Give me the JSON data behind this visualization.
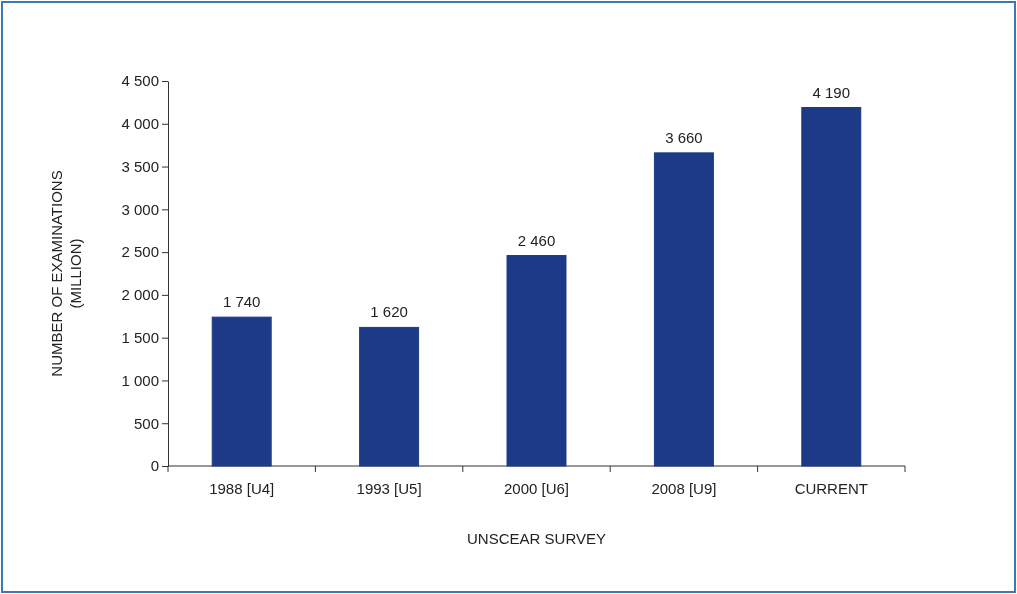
{
  "chart_data": {
    "type": "bar",
    "xlabel": "UNSCEAR SURVEY",
    "ylabel": "NUMBER OF EXAMINATIONS\n(MILLION)",
    "categories": [
      "1988 [U4]",
      "1993 [U5]",
      "2000 [U6]",
      "2008 [U9]",
      "CURRENT"
    ],
    "values": [
      1740,
      1620,
      2460,
      3660,
      4190
    ],
    "value_labels": [
      "1 740",
      "1 620",
      "2 460",
      "3 660",
      "4 190"
    ],
    "color": "#1c3a86",
    "ylim": [
      0,
      4500
    ],
    "yticks": [
      0,
      500,
      {
        "value": 1000,
        "label": "1 000"
      },
      {
        "value": 1500,
        "label": "1 500"
      },
      {
        "value": 2000,
        "label": "2 000"
      },
      {
        "value": 2500,
        "label": "2 500"
      },
      {
        "value": 3000,
        "label": "3 000"
      },
      {
        "value": 3500,
        "label": "3 500"
      },
      {
        "value": 4000,
        "label": "4 000"
      },
      {
        "value": 4500,
        "label": "4 500"
      }
    ],
    "grid": false
  }
}
